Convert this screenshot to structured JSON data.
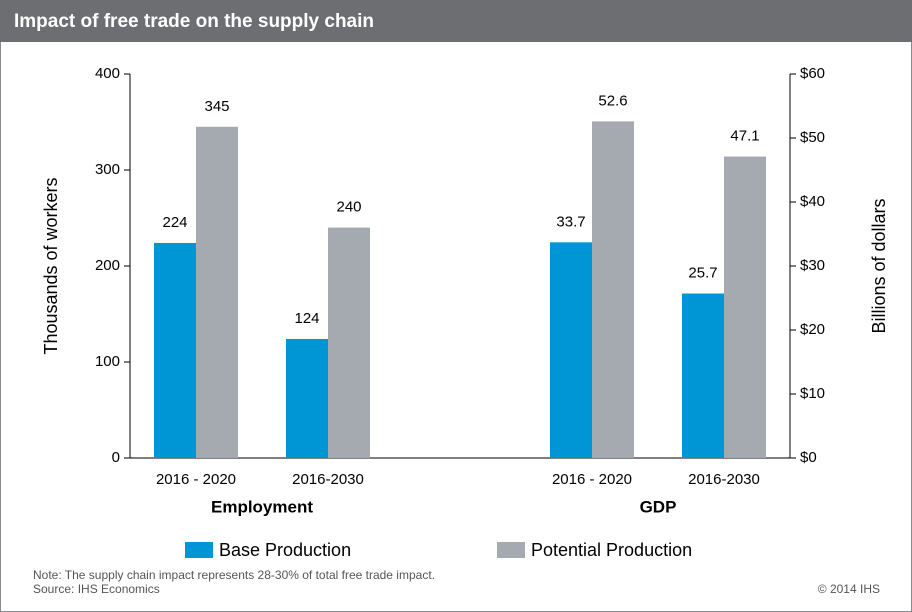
{
  "chart_data": {
    "type": "bar",
    "title": "Impact of free trade on the supply chain",
    "categories": [
      "2016 - 2020",
      "2016-2030",
      null,
      "2016 - 2020",
      "2016-2030"
    ],
    "category_axis": [
      "y",
      "y",
      null,
      "y2",
      "y2"
    ],
    "group_labels": [
      "Employment",
      "GDP"
    ],
    "series": [
      {
        "name": "Base Production",
        "color": "#0096d6",
        "values": [
          224,
          124,
          null,
          33.7,
          25.7
        ]
      },
      {
        "name": "Potential Production",
        "color": "#a5a9b0",
        "values": [
          345,
          240,
          null,
          52.6,
          47.1
        ]
      }
    ],
    "ylabel": "Thousands of workers",
    "ylim": [
      0,
      400
    ],
    "yticks": [
      0,
      100,
      200,
      300,
      400
    ],
    "y2label": "Billions of dollars",
    "y2lim": [
      0,
      60
    ],
    "y2ticks": [
      {
        "value": 0,
        "label": "$0"
      },
      {
        "value": 10,
        "label": "$10"
      },
      {
        "value": 20,
        "label": "$20"
      },
      {
        "value": 30,
        "label": "$30"
      },
      {
        "value": 40,
        "label": "$40"
      },
      {
        "value": 50,
        "label": "$50"
      },
      {
        "value": 60,
        "label": "$60"
      }
    ],
    "legend": "bottom",
    "note": "Note: The supply chain impact represents 28-30% of total free trade impact.",
    "source": "Source: IHS Economics",
    "copyright": "© 2014 IHS"
  }
}
